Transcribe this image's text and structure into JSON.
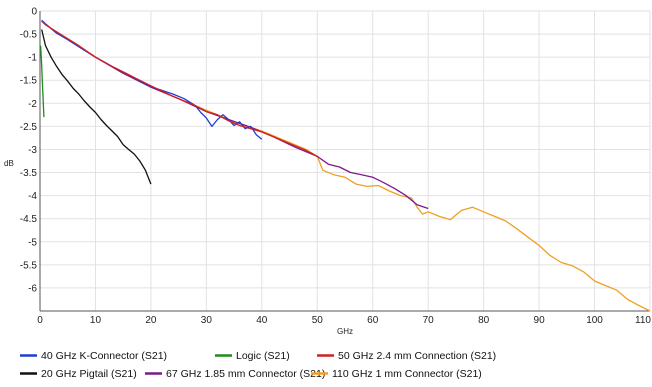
{
  "chart_data": {
    "type": "line",
    "title": "",
    "xlabel": "GHz",
    "ylabel": "dB",
    "xlim": [
      0,
      110
    ],
    "ylim": [
      -6.5,
      0
    ],
    "grid": true,
    "legend_placement": "bottom",
    "x_ticks": [
      "0",
      "10",
      "20",
      "30",
      "40",
      "50",
      "60",
      "70",
      "80",
      "90",
      "100",
      "110"
    ],
    "y_ticks": [
      "0",
      "-0.5",
      "-1",
      "-1.5",
      "-2",
      "-2.5",
      "-3",
      "-3.5",
      "-4",
      "-4.5",
      "-5",
      "-5.5",
      "-6"
    ],
    "series": [
      {
        "name": "40 GHz K-Connector (S21)",
        "color": "#1f3fd0",
        "points": [
          [
            0.3,
            -0.2
          ],
          [
            1,
            -0.28
          ],
          [
            3,
            -0.48
          ],
          [
            5,
            -0.62
          ],
          [
            8,
            -0.85
          ],
          [
            10,
            -1.0
          ],
          [
            13,
            -1.2
          ],
          [
            16,
            -1.38
          ],
          [
            18,
            -1.52
          ],
          [
            20,
            -1.64
          ],
          [
            22,
            -1.72
          ],
          [
            24,
            -1.8
          ],
          [
            26,
            -1.9
          ],
          [
            28,
            -2.05
          ],
          [
            29,
            -2.2
          ],
          [
            30,
            -2.32
          ],
          [
            31,
            -2.5
          ],
          [
            32,
            -2.35
          ],
          [
            33,
            -2.25
          ],
          [
            34,
            -2.35
          ],
          [
            35,
            -2.48
          ],
          [
            36,
            -2.4
          ],
          [
            37,
            -2.55
          ],
          [
            38,
            -2.5
          ],
          [
            39,
            -2.68
          ],
          [
            40,
            -2.78
          ]
        ]
      },
      {
        "name": "Logic (S21)",
        "color": "#1e8c1e",
        "points": [
          [
            0.1,
            -0.75
          ],
          [
            0.25,
            -1.05
          ],
          [
            0.4,
            -1.45
          ],
          [
            0.55,
            -1.85
          ],
          [
            0.7,
            -2.3
          ]
        ]
      },
      {
        "name": "50 GHz 2.4 mm Connection (S21)",
        "color": "#d41f1f",
        "points": [
          [
            0.3,
            -0.22
          ],
          [
            1,
            -0.3
          ],
          [
            3,
            -0.45
          ],
          [
            5,
            -0.6
          ],
          [
            7,
            -0.75
          ],
          [
            10,
            -1.0
          ],
          [
            13,
            -1.2
          ],
          [
            16,
            -1.38
          ],
          [
            20,
            -1.62
          ],
          [
            24,
            -1.85
          ],
          [
            28,
            -2.05
          ],
          [
            30,
            -2.18
          ],
          [
            32,
            -2.25
          ],
          [
            34,
            -2.38
          ],
          [
            36,
            -2.48
          ],
          [
            38,
            -2.55
          ],
          [
            40,
            -2.62
          ],
          [
            42,
            -2.72
          ],
          [
            44,
            -2.82
          ],
          [
            46,
            -2.92
          ],
          [
            48,
            -3.02
          ],
          [
            50,
            -3.15
          ]
        ]
      },
      {
        "name": "20 GHz Pigtail (S21)",
        "color": "#111111",
        "points": [
          [
            0.3,
            -0.4
          ],
          [
            1,
            -0.75
          ],
          [
            2,
            -1.0
          ],
          [
            3,
            -1.2
          ],
          [
            4,
            -1.38
          ],
          [
            5,
            -1.52
          ],
          [
            6,
            -1.68
          ],
          [
            7,
            -1.8
          ],
          [
            8,
            -1.95
          ],
          [
            9,
            -2.08
          ],
          [
            10,
            -2.2
          ],
          [
            11,
            -2.35
          ],
          [
            12,
            -2.48
          ],
          [
            13,
            -2.6
          ],
          [
            14,
            -2.72
          ],
          [
            15,
            -2.9
          ],
          [
            16,
            -3.0
          ],
          [
            17,
            -3.1
          ],
          [
            18,
            -3.25
          ],
          [
            19,
            -3.45
          ],
          [
            20,
            -3.75
          ]
        ]
      },
      {
        "name": "67 GHz 1.85 mm Connector (S21)",
        "color": "#7a1a8c",
        "points": [
          [
            0.3,
            -0.22
          ],
          [
            2,
            -0.38
          ],
          [
            5,
            -0.62
          ],
          [
            10,
            -1.0
          ],
          [
            15,
            -1.35
          ],
          [
            20,
            -1.65
          ],
          [
            25,
            -1.9
          ],
          [
            30,
            -2.18
          ],
          [
            34,
            -2.35
          ],
          [
            38,
            -2.52
          ],
          [
            42,
            -2.72
          ],
          [
            46,
            -2.95
          ],
          [
            50,
            -3.15
          ],
          [
            52,
            -3.32
          ],
          [
            54,
            -3.38
          ],
          [
            56,
            -3.5
          ],
          [
            58,
            -3.55
          ],
          [
            60,
            -3.6
          ],
          [
            62,
            -3.72
          ],
          [
            64,
            -3.85
          ],
          [
            66,
            -4.0
          ],
          [
            68,
            -4.2
          ],
          [
            70,
            -4.28
          ]
        ]
      },
      {
        "name": "110 GHz 1 mm Connector (S21)",
        "color": "#f0a020",
        "points": [
          [
            0.3,
            -0.22
          ],
          [
            2,
            -0.38
          ],
          [
            5,
            -0.62
          ],
          [
            10,
            -1.0
          ],
          [
            15,
            -1.35
          ],
          [
            20,
            -1.65
          ],
          [
            25,
            -1.9
          ],
          [
            30,
            -2.15
          ],
          [
            35,
            -2.4
          ],
          [
            40,
            -2.6
          ],
          [
            45,
            -2.85
          ],
          [
            48,
            -3.0
          ],
          [
            50,
            -3.15
          ],
          [
            51,
            -3.45
          ],
          [
            53,
            -3.55
          ],
          [
            55,
            -3.6
          ],
          [
            57,
            -3.75
          ],
          [
            59,
            -3.8
          ],
          [
            61,
            -3.78
          ],
          [
            63,
            -3.9
          ],
          [
            65,
            -4.0
          ],
          [
            67,
            -4.05
          ],
          [
            68,
            -4.25
          ],
          [
            69,
            -4.4
          ],
          [
            70,
            -4.35
          ],
          [
            72,
            -4.45
          ],
          [
            74,
            -4.52
          ],
          [
            76,
            -4.32
          ],
          [
            78,
            -4.25
          ],
          [
            80,
            -4.35
          ],
          [
            82,
            -4.45
          ],
          [
            84,
            -4.55
          ],
          [
            86,
            -4.72
          ],
          [
            88,
            -4.9
          ],
          [
            90,
            -5.08
          ],
          [
            92,
            -5.3
          ],
          [
            94,
            -5.45
          ],
          [
            96,
            -5.52
          ],
          [
            98,
            -5.65
          ],
          [
            100,
            -5.85
          ],
          [
            102,
            -5.95
          ],
          [
            104,
            -6.05
          ],
          [
            106,
            -6.25
          ],
          [
            108,
            -6.38
          ],
          [
            110,
            -6.5
          ]
        ]
      }
    ]
  }
}
